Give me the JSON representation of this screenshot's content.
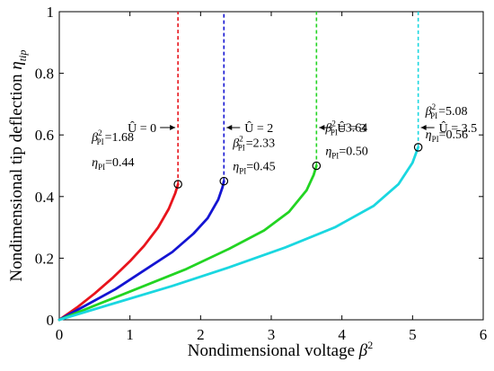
{
  "chart_data": {
    "type": "line",
    "xlabel": "Nondimensional voltage",
    "xlabel_symbol": "β",
    "xlabel_sup": "2",
    "ylabel": "Nondimensional tip deflection",
    "ylabel_symbol": "η",
    "ylabel_sub": "tip",
    "xlim": [
      0,
      6
    ],
    "ylim": [
      0,
      1
    ],
    "xticks": [
      "0",
      "1",
      "2",
      "3",
      "4",
      "5",
      "6"
    ],
    "yticks": [
      "0",
      "0.2",
      "0.4",
      "0.6",
      "0.8",
      "1"
    ],
    "grid": false,
    "series": [
      {
        "name": "Û = 0",
        "color": "#e8141c",
        "pull_in": {
          "beta2": 1.68,
          "eta": 0.44
        },
        "beta2_label": "1.68",
        "eta_label": "0.44",
        "points": [
          [
            0,
            0
          ],
          [
            0.25,
            0.04
          ],
          [
            0.5,
            0.085
          ],
          [
            0.75,
            0.135
          ],
          [
            1.0,
            0.19
          ],
          [
            1.2,
            0.24
          ],
          [
            1.4,
            0.3
          ],
          [
            1.55,
            0.36
          ],
          [
            1.64,
            0.41
          ],
          [
            1.68,
            0.44
          ]
        ]
      },
      {
        "name": "Û = 2",
        "color": "#1414d2",
        "pull_in": {
          "beta2": 2.33,
          "eta": 0.45
        },
        "beta2_label": "2.33",
        "eta_label": "0.45",
        "points": [
          [
            0,
            0
          ],
          [
            0.4,
            0.05
          ],
          [
            0.8,
            0.1
          ],
          [
            1.2,
            0.16
          ],
          [
            1.6,
            0.22
          ],
          [
            1.9,
            0.28
          ],
          [
            2.1,
            0.33
          ],
          [
            2.25,
            0.39
          ],
          [
            2.31,
            0.43
          ],
          [
            2.33,
            0.45
          ]
        ]
      },
      {
        "name": "Û = 3",
        "color": "#22d422",
        "pull_in": {
          "beta2": 3.64,
          "eta": 0.5
        },
        "beta2_label": "3.64",
        "eta_label": "0.50",
        "points": [
          [
            0,
            0
          ],
          [
            0.6,
            0.055
          ],
          [
            1.2,
            0.11
          ],
          [
            1.8,
            0.165
          ],
          [
            2.4,
            0.23
          ],
          [
            2.9,
            0.29
          ],
          [
            3.25,
            0.35
          ],
          [
            3.5,
            0.42
          ],
          [
            3.6,
            0.47
          ],
          [
            3.64,
            0.5
          ]
        ]
      },
      {
        "name": "Û = 3.5",
        "color": "#1ad7e0",
        "pull_in": {
          "beta2": 5.08,
          "eta": 0.56
        },
        "beta2_label": "5.08",
        "eta_label": "0.56",
        "points": [
          [
            0,
            0
          ],
          [
            0.8,
            0.055
          ],
          [
            1.6,
            0.11
          ],
          [
            2.4,
            0.17
          ],
          [
            3.2,
            0.235
          ],
          [
            3.9,
            0.3
          ],
          [
            4.45,
            0.37
          ],
          [
            4.8,
            0.44
          ],
          [
            5.0,
            0.51
          ],
          [
            5.08,
            0.56
          ]
        ]
      }
    ],
    "annotations": [
      {
        "label": "Û = 0",
        "arrow_to_x": 1.68,
        "y": 0.72
      },
      {
        "label": "Û = 2",
        "arrow_to_x": 2.33,
        "y": 0.72
      },
      {
        "label": "Û = 3",
        "arrow_to_x": 3.64,
        "y": 0.72
      },
      {
        "label": "Û = 3.5",
        "arrow_to_x": 5.08,
        "y": 0.72
      }
    ],
    "pull_in_label_symbol": "β",
    "pull_in_label_sub": "PI",
    "pull_in_label_sup": "2",
    "pull_in_eta_symbol": "η",
    "pull_in_eta_sub": "PI"
  }
}
